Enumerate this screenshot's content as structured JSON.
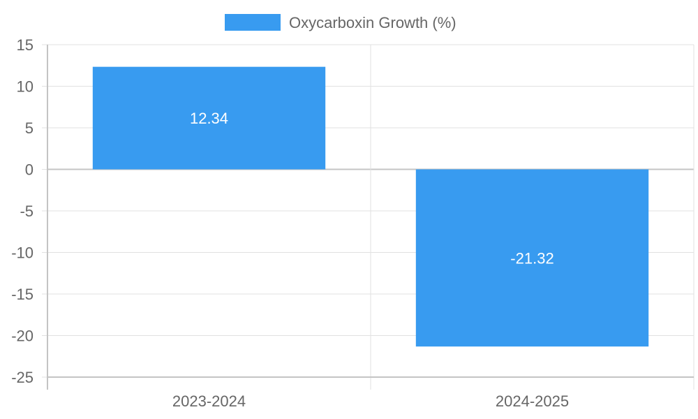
{
  "chart_data": {
    "type": "bar",
    "categories": [
      "2023-2024",
      "2024-2025"
    ],
    "series": [
      {
        "name": "Oxycarboxin Growth (%)",
        "values": [
          12.34,
          -21.32
        ],
        "color": "#389bf0"
      }
    ],
    "ylim": [
      -25,
      15
    ],
    "y_step": 5,
    "y_tick_labels": [
      "15",
      "10",
      "5",
      "0",
      "-5",
      "-10",
      "-15",
      "-20",
      "-25"
    ],
    "data_labels": [
      "12.34",
      "-21.32"
    ],
    "legend": {
      "position": "top-center"
    },
    "grid": true,
    "title": "",
    "xlabel": "",
    "ylabel": ""
  }
}
